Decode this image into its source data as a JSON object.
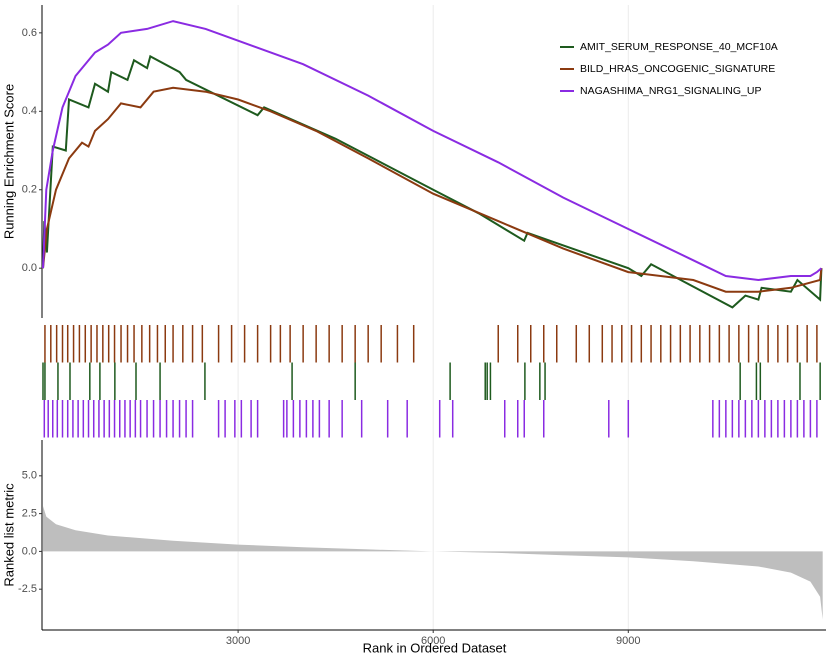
{
  "chart_data": [
    {
      "type": "line",
      "ylabel": "Running Enrichment Score",
      "xlim": [
        0,
        12040
      ],
      "ylim": [
        -0.127,
        0.671
      ],
      "yticks": [
        {
          "value": 0,
          "label": "0.0"
        },
        {
          "value": 0.2,
          "label": "0.2"
        },
        {
          "value": 0.4,
          "label": "0.4"
        },
        {
          "value": 0.6,
          "label": "0.6"
        }
      ],
      "legend": "top right",
      "series": [
        {
          "name": "AMIT_SERUM_RESPONSE_40_MCF10A",
          "color": "#1e5a1e",
          "x": [
            0,
            20,
            60,
            150,
            350,
            400,
            700,
            800,
            1000,
            1050,
            1300,
            1400,
            1600,
            1650,
            2100,
            2200,
            3300,
            3400,
            4500,
            6000,
            6700,
            7400,
            7450,
            9000,
            9200,
            9350,
            10600,
            10800,
            11000,
            11050,
            11500,
            11600,
            11950,
            11970
          ],
          "values": [
            0,
            0.12,
            0.04,
            0.31,
            0.3,
            0.43,
            0.41,
            0.47,
            0.45,
            0.5,
            0.48,
            0.53,
            0.51,
            0.54,
            0.5,
            0.48,
            0.39,
            0.41,
            0.33,
            0.2,
            0.14,
            0.07,
            0.09,
            0.0,
            -0.02,
            0.01,
            -0.1,
            -0.07,
            -0.08,
            -0.05,
            -0.06,
            -0.03,
            -0.08,
            0.0
          ],
          "hits": [
            0,
            30,
            230,
            415,
            720,
            875,
            1105,
            1430,
            1800,
            2490,
            3830,
            4800,
            6260,
            6800,
            6830,
            6880,
            7410,
            7640,
            7720,
            10720,
            10970,
            11030,
            11640,
            11950
          ]
        },
        {
          "name": "BILD_HRAS_ONCOGENIC_SIGNATURE",
          "color": "#8b3a10",
          "x": [
            0,
            60,
            200,
            400,
            600,
            700,
            800,
            1000,
            1200,
            1500,
            1700,
            2000,
            2500,
            3000,
            3500,
            4200,
            5000,
            6000,
            7000,
            8000,
            9000,
            10000,
            10500,
            11000,
            11500,
            11950,
            11970
          ],
          "values": [
            0,
            0.1,
            0.2,
            0.28,
            0.32,
            0.31,
            0.35,
            0.38,
            0.42,
            0.41,
            0.45,
            0.46,
            0.45,
            0.43,
            0.4,
            0.35,
            0.28,
            0.19,
            0.12,
            0.05,
            -0.01,
            -0.03,
            -0.06,
            -0.06,
            -0.05,
            -0.03,
            0.0
          ],
          "hits": [
            30,
            120,
            210,
            300,
            380,
            470,
            560,
            650,
            740,
            830,
            920,
            1010,
            1100,
            1200,
            1300,
            1400,
            1520,
            1640,
            1760,
            1880,
            2000,
            2150,
            2300,
            2450,
            2700,
            2900,
            3100,
            3300,
            3500,
            3650,
            3800,
            4000,
            4200,
            4400,
            4600,
            4800,
            5000,
            5200,
            5450,
            5700,
            7000,
            7300,
            7500,
            7700,
            7900,
            8200,
            8400,
            8600,
            8750,
            8900,
            9050,
            9200,
            9350,
            9500,
            9650,
            9800,
            9950,
            10100,
            10250,
            10400,
            10550,
            10700,
            10850,
            11000,
            11150,
            11300,
            11450,
            11600,
            11750,
            11900
          ]
        },
        {
          "name": "NAGASHIMA_NRG1_SIGNALING_UP",
          "color": "#8a2be2",
          "x": [
            0,
            50,
            150,
            300,
            500,
            800,
            1000,
            1200,
            1600,
            2000,
            2500,
            3000,
            4000,
            5000,
            6000,
            7000,
            8000,
            9000,
            10000,
            10500,
            11000,
            11500,
            11800,
            11900,
            11970
          ],
          "values": [
            0,
            0.2,
            0.3,
            0.41,
            0.49,
            0.55,
            0.57,
            0.6,
            0.61,
            0.63,
            0.61,
            0.58,
            0.52,
            0.44,
            0.35,
            0.27,
            0.18,
            0.1,
            0.02,
            -0.02,
            -0.03,
            -0.02,
            -0.02,
            -0.01,
            0.0
          ],
          "hits": [
            20,
            80,
            150,
            220,
            300,
            380,
            460,
            540,
            620,
            700,
            780,
            860,
            940,
            1020,
            1100,
            1180,
            1260,
            1340,
            1420,
            1500,
            1600,
            1700,
            1800,
            1900,
            2000,
            2100,
            2200,
            2300,
            2700,
            2800,
            2950,
            3050,
            3200,
            3300,
            3700,
            3750,
            3850,
            3950,
            4050,
            4150,
            4250,
            4400,
            4600,
            4900,
            5300,
            5600,
            6100,
            6300,
            7100,
            7300,
            7400,
            7700,
            8700,
            9000,
            10300,
            10400,
            10500,
            10600,
            10700,
            10800,
            10900,
            11000,
            11100,
            11200,
            11300,
            11400,
            11500,
            11600,
            11700,
            11800,
            11900
          ]
        }
      ]
    },
    {
      "type": "area",
      "ylabel": "Ranked list metric",
      "xlabel": "Rank in Ordered Dataset",
      "color": "#bebebe",
      "xlim": [
        0,
        12040
      ],
      "xticks": [
        3000,
        6000,
        9000
      ],
      "ylim": [
        -5.2,
        7.37
      ],
      "yticks": [
        -2.5,
        {
          "value": 0,
          "label": "0.0"
        },
        2.5,
        {
          "value": 5,
          "label": "5.0"
        }
      ],
      "x": [
        0,
        50,
        200,
        500,
        1000,
        2000,
        3000,
        4000,
        5000,
        6000,
        7000,
        8000,
        9000,
        10000,
        11000,
        11500,
        11800,
        11950,
        11990
      ],
      "values": [
        3.0,
        2.3,
        1.8,
        1.4,
        1.05,
        0.7,
        0.45,
        0.28,
        0.13,
        0.0,
        -0.1,
        -0.25,
        -0.4,
        -0.65,
        -1.0,
        -1.4,
        -2.0,
        -3.0,
        -4.5
      ]
    }
  ]
}
